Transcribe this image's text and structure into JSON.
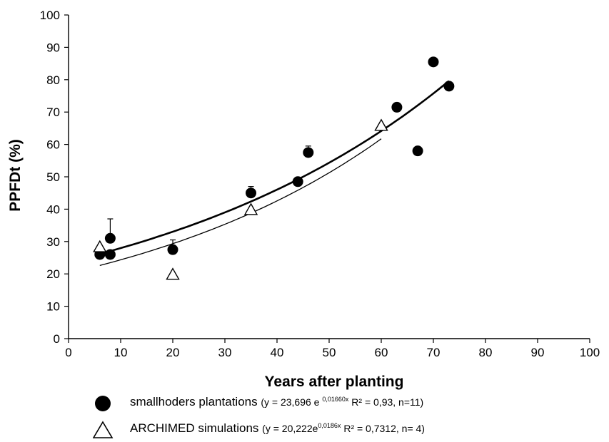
{
  "chart_data": {
    "type": "scatter",
    "xlabel": "Years after planting",
    "ylabel": "PPFDt (%)",
    "xlim": [
      0,
      100
    ],
    "ylim": [
      0,
      100
    ],
    "x_ticks": [
      "0",
      "10",
      "20",
      "30",
      "40",
      "50",
      "60",
      "70",
      "80",
      "90",
      "100"
    ],
    "y_ticks": [
      "0",
      "10",
      "20",
      "30",
      "40",
      "50",
      "60",
      "70",
      "80",
      "90",
      "100"
    ],
    "grid": false,
    "legend_position": "bottom",
    "series": [
      {
        "name": "smallhoders plantations",
        "marker": "filled-circle",
        "color": "#000000",
        "points": [
          {
            "x": 6,
            "y": 26,
            "err": 0
          },
          {
            "x": 8,
            "y": 26,
            "err": 0
          },
          {
            "x": 8,
            "y": 31,
            "err": 6
          },
          {
            "x": 20,
            "y": 27.5,
            "err": 3
          },
          {
            "x": 35,
            "y": 45,
            "err": 2
          },
          {
            "x": 44,
            "y": 48.5,
            "err": 0
          },
          {
            "x": 46,
            "y": 57.5,
            "err": 2
          },
          {
            "x": 63,
            "y": 71.5,
            "err": 0
          },
          {
            "x": 67,
            "y": 58,
            "err": 0
          },
          {
            "x": 70,
            "y": 85.5,
            "err": 0
          },
          {
            "x": 73,
            "y": 78,
            "err": 0
          }
        ],
        "fit": {
          "a": 23.696,
          "b": 0.0166,
          "x_range": [
            6,
            73
          ]
        },
        "equation_prefix": "y = 23,696 e",
        "equation_exp": "0,01660x",
        "equation_suffix": " R² = 0,93, n=11)"
      },
      {
        "name": "ARCHIMED simulations",
        "marker": "open-triangle",
        "color": "#000000",
        "points": [
          {
            "x": 6,
            "y": 28.5
          },
          {
            "x": 20,
            "y": 20
          },
          {
            "x": 35,
            "y": 40
          },
          {
            "x": 60,
            "y": 66
          }
        ],
        "fit": {
          "a": 20.222,
          "b": 0.0186,
          "x_range": [
            6,
            60
          ]
        },
        "equation_prefix": "y = 20,222e",
        "equation_exp": "0,0186x",
        "equation_suffix": " R² = 0,7312, n= 4)"
      }
    ]
  }
}
